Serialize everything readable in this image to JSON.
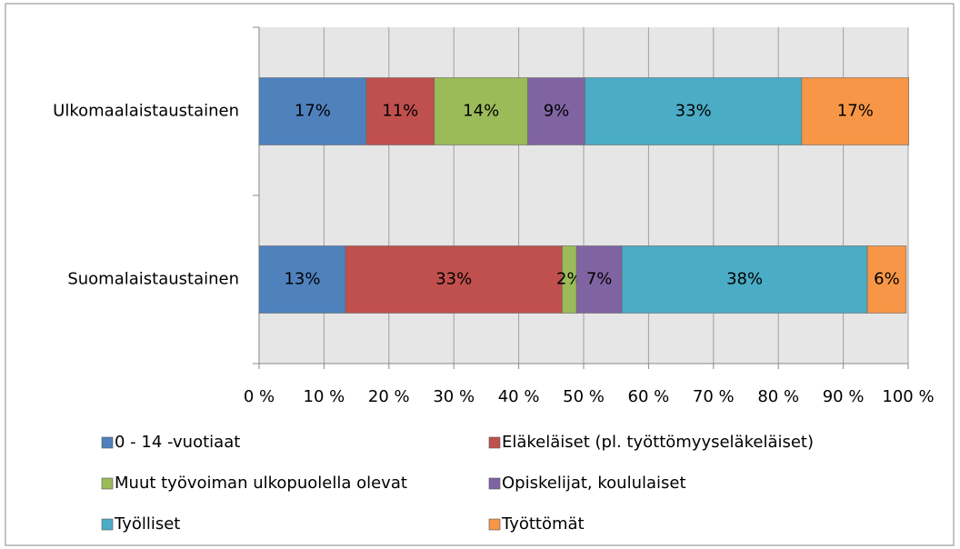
{
  "chart_data": {
    "type": "stacked_barh",
    "categories": [
      "Ulkomaalaistaustainen",
      "Suomalaistaustainen"
    ],
    "series": [
      {
        "name": "0 - 14 -vuotiaat",
        "color": "#4f81bd",
        "values": [
          16.5,
          13.3
        ],
        "value_labels": [
          "17%",
          "13%"
        ]
      },
      {
        "name": "Eläkeläiset (pl. työttömyyseläkeläiset)",
        "color": "#c0504d",
        "values": [
          10.5,
          33.4
        ],
        "value_labels": [
          "11%",
          "33%"
        ]
      },
      {
        "name": "Muut työvoiman ulkopuolella olevat",
        "color": "#9bbb59",
        "values": [
          14.4,
          2.2
        ],
        "value_labels": [
          "14%",
          "2%"
        ]
      },
      {
        "name": "Opiskelijat, koululaiset",
        "color": "#8064a2",
        "values": [
          8.8,
          7.0
        ],
        "value_labels": [
          "9%",
          "7%"
        ]
      },
      {
        "name": "Työlliset",
        "color": "#4bacc6",
        "values": [
          33.4,
          37.8
        ],
        "value_labels": [
          "33%",
          "38%"
        ]
      },
      {
        "name": "Työttömät",
        "color": "#f79646",
        "values": [
          16.5,
          6.0
        ],
        "value_labels": [
          "17%",
          "6%"
        ]
      }
    ],
    "xlim": [
      0,
      100
    ],
    "xticks": [
      {
        "value": 0,
        "label": "0 %"
      },
      {
        "value": 10,
        "label": "10 %"
      },
      {
        "value": 20,
        "label": "20 %"
      },
      {
        "value": 30,
        "label": "30 %"
      },
      {
        "value": 40,
        "label": "40 %"
      },
      {
        "value": 50,
        "label": "50 %"
      },
      {
        "value": 60,
        "label": "60 %"
      },
      {
        "value": 70,
        "label": "70 %"
      },
      {
        "value": 80,
        "label": "80 %"
      },
      {
        "value": 90,
        "label": "90 %"
      },
      {
        "value": 100,
        "label": "100 %"
      }
    ],
    "grid": true,
    "legend": "bottom"
  }
}
